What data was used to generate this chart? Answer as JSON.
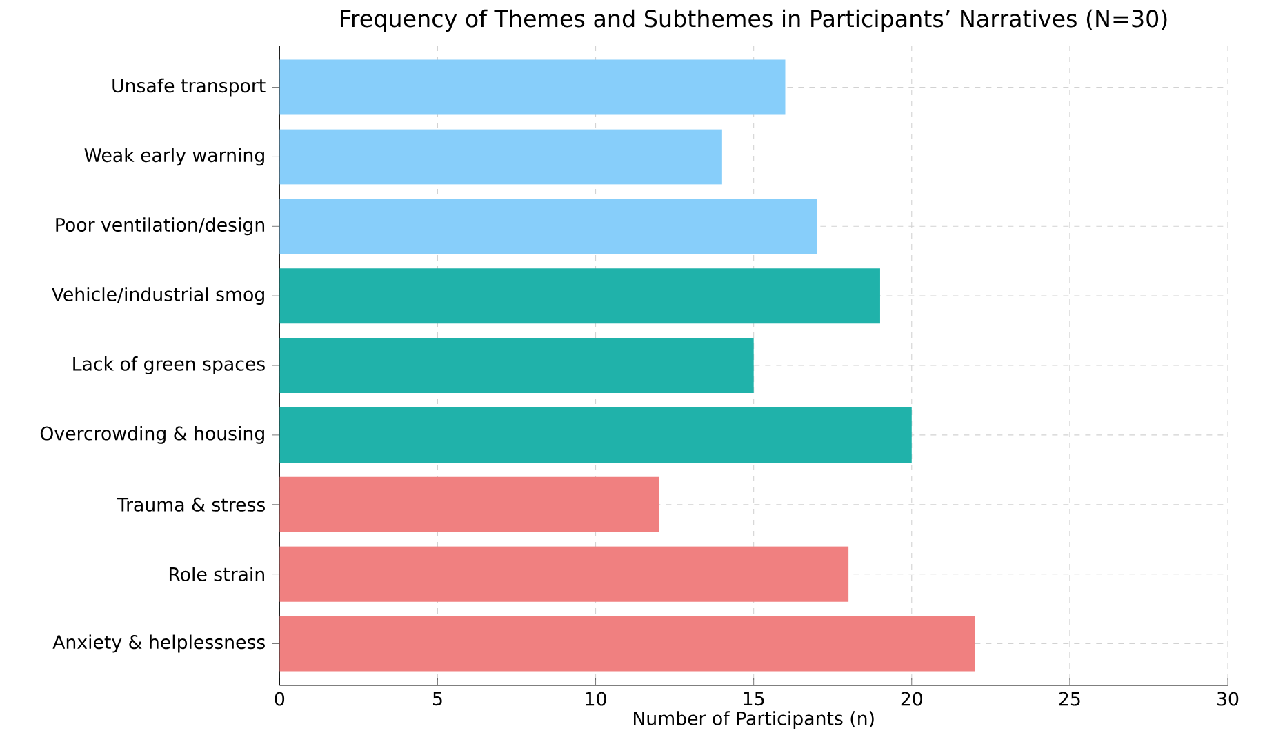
{
  "chart_data": {
    "type": "bar",
    "orientation": "horizontal",
    "title": "Frequency of Themes and Subthemes in Participants’ Narratives (N=30)",
    "xlabel": "Number of Participants (n)",
    "categories": [
      "Unsafe transport",
      "Weak early warning",
      "Poor ventilation/design",
      "Vehicle/industrial smog",
      "Lack of green spaces",
      "Overcrowding & housing",
      "Trauma & stress",
      "Role strain",
      "Anxiety & helplessness"
    ],
    "values": [
      16,
      14,
      17,
      19,
      15,
      20,
      12,
      18,
      22
    ],
    "colors": [
      "#87cefa",
      "#87cefa",
      "#87cefa",
      "#20b2aa",
      "#20b2aa",
      "#20b2aa",
      "#f08080",
      "#f08080",
      "#f08080"
    ],
    "xlim": [
      0,
      30
    ],
    "xticks": [
      0,
      5,
      10,
      15,
      20,
      25,
      30
    ],
    "grid": true
  }
}
